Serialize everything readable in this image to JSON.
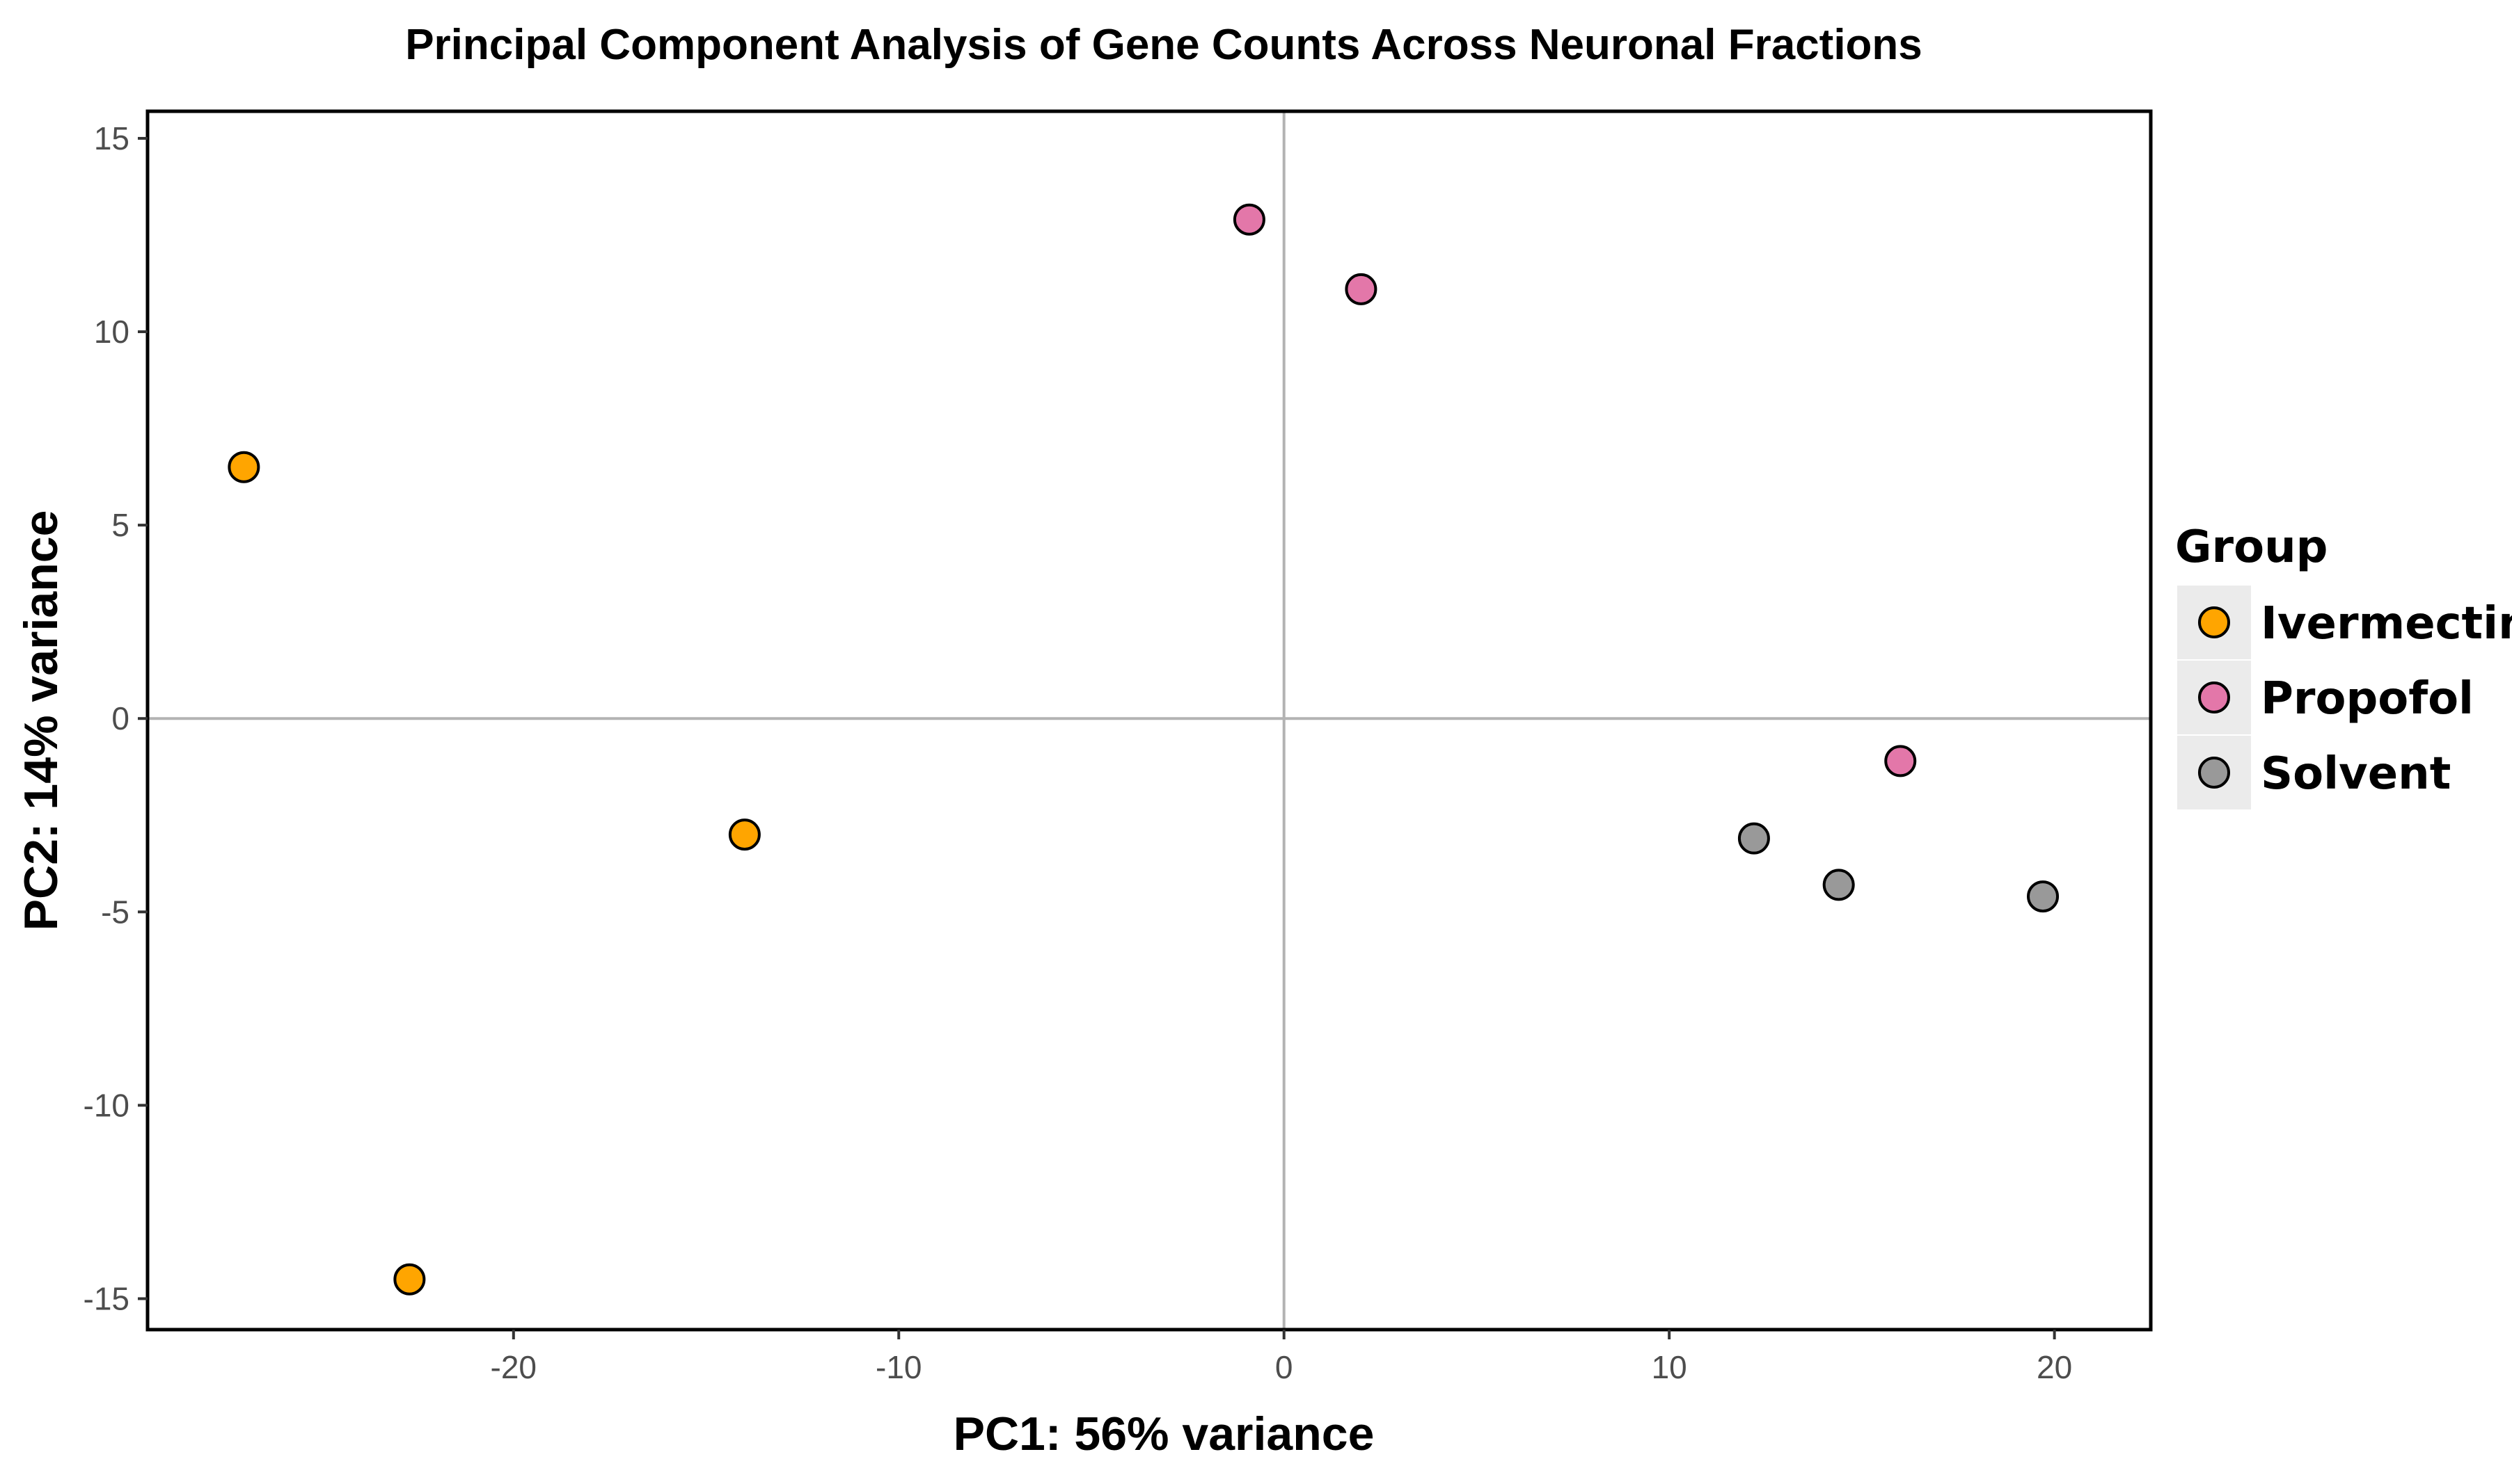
{
  "chart_data": {
    "type": "scatter",
    "title": "Principal Component Analysis of Gene Counts Across Neuronal Fractions",
    "xlabel": "PC1: 56% variance",
    "ylabel": "PC2: 14% variance",
    "xlim": [
      -29.5,
      22.5
    ],
    "ylim": [
      -15.8,
      15.7
    ],
    "xticks": [
      -20,
      -10,
      0,
      10,
      20
    ],
    "xtick_labels": [
      "-20",
      "-10",
      "0",
      "10",
      "20"
    ],
    "yticks": [
      15,
      10,
      5,
      0,
      -5,
      -10,
      -15
    ],
    "ytick_labels": [
      "15",
      "10",
      "5",
      "0",
      "-5",
      "-10",
      "-15"
    ],
    "reference_lines": {
      "x": 0,
      "y": 0
    },
    "grid": false,
    "legend": {
      "title": "Group",
      "placement": "right",
      "entries": [
        "Ivermectin",
        "Propofol",
        "Solvent"
      ]
    },
    "series": [
      {
        "name": "Ivermectin",
        "color": "#ffa500",
        "points": [
          {
            "x": -27.0,
            "y": 6.5
          },
          {
            "x": -22.7,
            "y": -14.5
          },
          {
            "x": -14.0,
            "y": -3.0
          }
        ]
      },
      {
        "name": "Propofol",
        "color": "#e377a9",
        "points": [
          {
            "x": -0.9,
            "y": 12.9
          },
          {
            "x": 2.0,
            "y": 11.1
          },
          {
            "x": 16.0,
            "y": -1.1
          }
        ]
      },
      {
        "name": "Solvent",
        "color": "#999999",
        "points": [
          {
            "x": 12.2,
            "y": -3.1
          },
          {
            "x": 14.4,
            "y": -4.3
          },
          {
            "x": 19.7,
            "y": -4.6
          }
        ]
      }
    ]
  }
}
